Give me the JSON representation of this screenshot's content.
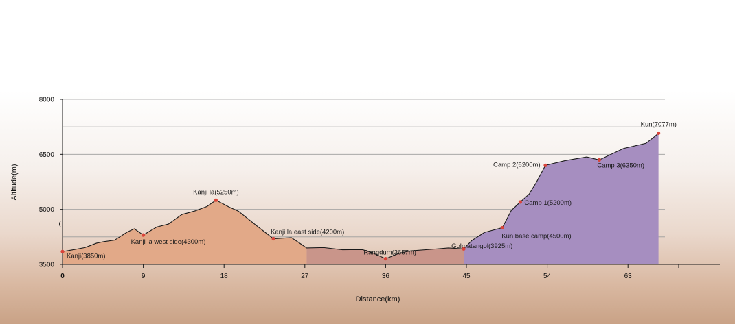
{
  "chart_data": {
    "type": "area",
    "title": "",
    "xlabel": "Distance(km)",
    "ylabel": "Altitude(m)",
    "xlim": [
      0,
      72
    ],
    "ylim": [
      3500,
      8000
    ],
    "x_ticks": [
      0,
      9,
      18,
      27,
      36,
      45,
      54,
      63
    ],
    "y_ticks": [
      3500,
      5000,
      6500,
      8000
    ],
    "grid": true,
    "colors": {
      "segment_1": "#e2a988",
      "segment_2": "#c9958a",
      "segment_3": "#a68ec0",
      "marker": "#d9443a",
      "outline": "#1a1a1a",
      "grid": "#9c9c9c"
    },
    "profile": [
      {
        "x": 0,
        "y": 3850
      },
      {
        "x": 1.2,
        "y": 3900
      },
      {
        "x": 2.5,
        "y": 3960
      },
      {
        "x": 3.8,
        "y": 4080
      },
      {
        "x": 4.6,
        "y": 4120
      },
      {
        "x": 5.8,
        "y": 4160
      },
      {
        "x": 7.2,
        "y": 4380
      },
      {
        "x": 8,
        "y": 4470
      },
      {
        "x": 9,
        "y": 4300
      },
      {
        "x": 10.5,
        "y": 4520
      },
      {
        "x": 11.8,
        "y": 4600
      },
      {
        "x": 13.3,
        "y": 4860
      },
      {
        "x": 14.8,
        "y": 4960
      },
      {
        "x": 16.1,
        "y": 5080
      },
      {
        "x": 17.1,
        "y": 5250
      },
      {
        "x": 18.6,
        "y": 5060
      },
      {
        "x": 19.6,
        "y": 4950
      },
      {
        "x": 21.6,
        "y": 4560
      },
      {
        "x": 23.5,
        "y": 4200
      },
      {
        "x": 25.5,
        "y": 4230
      },
      {
        "x": 26.3,
        "y": 4100
      },
      {
        "x": 27.2,
        "y": 3950
      },
      {
        "x": 29.1,
        "y": 3960
      },
      {
        "x": 31.2,
        "y": 3900
      },
      {
        "x": 33.4,
        "y": 3905
      },
      {
        "x": 34.5,
        "y": 3820
      },
      {
        "x": 36,
        "y": 3657
      },
      {
        "x": 37.6,
        "y": 3810
      },
      {
        "x": 38.8,
        "y": 3870
      },
      {
        "x": 41.5,
        "y": 3920
      },
      {
        "x": 43,
        "y": 3950
      },
      {
        "x": 44.7,
        "y": 3925
      },
      {
        "x": 45.6,
        "y": 4150
      },
      {
        "x": 47,
        "y": 4370
      },
      {
        "x": 48.2,
        "y": 4450
      },
      {
        "x": 49,
        "y": 4500
      },
      {
        "x": 50,
        "y": 4970
      },
      {
        "x": 51,
        "y": 5200
      },
      {
        "x": 52,
        "y": 5420
      },
      {
        "x": 52.8,
        "y": 5740
      },
      {
        "x": 53.8,
        "y": 6200
      },
      {
        "x": 56,
        "y": 6330
      },
      {
        "x": 58.4,
        "y": 6430
      },
      {
        "x": 59.8,
        "y": 6350
      },
      {
        "x": 62.5,
        "y": 6660
      },
      {
        "x": 65,
        "y": 6800
      },
      {
        "x": 65.8,
        "y": 6950
      },
      {
        "x": 66.4,
        "y": 7077
      }
    ],
    "segments": [
      {
        "from": 0,
        "to": 27.2,
        "color": "#e2a988"
      },
      {
        "from": 27.2,
        "to": 44.7,
        "color": "#c9958a"
      },
      {
        "from": 44.7,
        "to": 66.4,
        "color": "#a68ec0"
      }
    ],
    "waypoints": [
      {
        "label": "Kanji(3850m)",
        "x": 0,
        "y": 3850
      },
      {
        "label": "Kanji la west side(4300m)",
        "x": 9,
        "y": 4300
      },
      {
        "label": "Kanji la(5250m)",
        "x": 17.1,
        "y": 5250
      },
      {
        "label": "Kanji la east side(4200m)",
        "x": 23.5,
        "y": 4200
      },
      {
        "label": "Rangdum(3657m)",
        "x": 36,
        "y": 3657
      },
      {
        "label": "Golmatangol(3925m)",
        "x": 44.7,
        "y": 3925
      },
      {
        "label": "Kun base camp(4500m)",
        "x": 49,
        "y": 4500
      },
      {
        "label": "Camp 1(5200m)",
        "x": 51,
        "y": 5200
      },
      {
        "label": "Camp 2(6200m)",
        "x": 53.8,
        "y": 6200
      },
      {
        "label": "Camp 3(6350m)",
        "x": 59.8,
        "y": 6350
      },
      {
        "label": "Kun(7077m)",
        "x": 66.4,
        "y": 7077
      }
    ]
  }
}
